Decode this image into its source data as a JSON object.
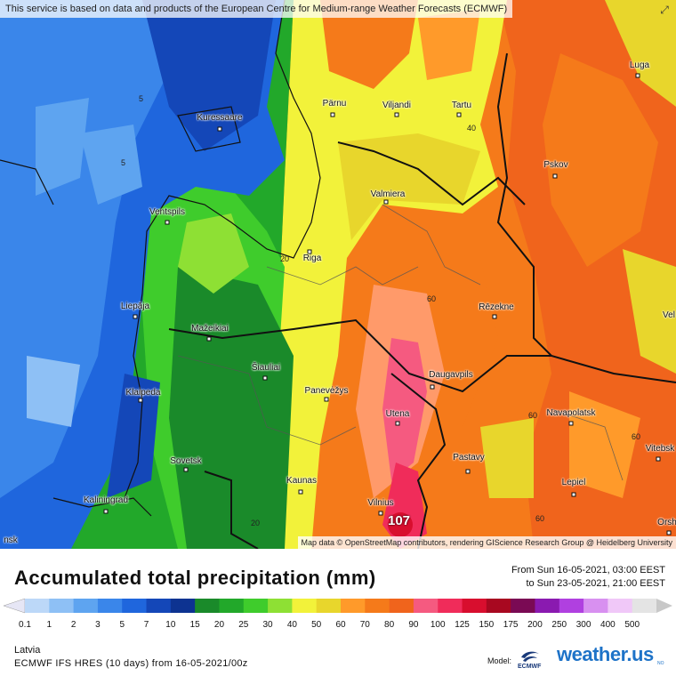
{
  "map": {
    "attribution_top": "This service is based on data and products of the European Centre for Medium-range Weather Forecasts (ECMWF)",
    "attribution_bottom": "Map data © OpenStreetMap contributors, rendering GIScience Research Group @ Heidelberg University",
    "expand_icon": "expand-arrows-icon",
    "cities": [
      {
        "name": "Pärnu"
      },
      {
        "name": "Viljandi"
      },
      {
        "name": "Tartu"
      },
      {
        "name": "Luga"
      },
      {
        "name": "Kuressaare"
      },
      {
        "name": "Pskov"
      },
      {
        "name": "Valmiera"
      },
      {
        "name": "Ventspils"
      },
      {
        "name": "Riga"
      },
      {
        "name": "Liepāja"
      },
      {
        "name": "Rēzekne"
      },
      {
        "name": "Mažeikiai"
      },
      {
        "name": "Šiauliai"
      },
      {
        "name": "Daugavpils"
      },
      {
        "name": "Klaipeda"
      },
      {
        "name": "Panevėžys"
      },
      {
        "name": "Utena"
      },
      {
        "name": "Navapolatsk"
      },
      {
        "name": "Vitebsk"
      },
      {
        "name": "Sovetsk"
      },
      {
        "name": "Pastavy"
      },
      {
        "name": "Kaunas"
      },
      {
        "name": "Lepiel"
      },
      {
        "name": "Kaliningrad"
      },
      {
        "name": "Vilnius"
      },
      {
        "name": "Orsh"
      },
      {
        "name": "Vel"
      },
      {
        "name": "nsk"
      }
    ],
    "contour_labels": [
      "5",
      "5",
      "20",
      "40",
      "60",
      "60",
      "60",
      "60",
      "20"
    ],
    "max_value": "107"
  },
  "legend": {
    "title": "Accumulated total precipitation (mm)",
    "period_from": "From Sun 16-05-2021, 03:00 EEST",
    "period_to": "to Sun 23-05-2021, 21:00 EEST",
    "ticks": [
      "0.1",
      "1",
      "2",
      "3",
      "5",
      "7",
      "10",
      "15",
      "20",
      "25",
      "30",
      "40",
      "50",
      "60",
      "70",
      "80",
      "90",
      "100",
      "125",
      "150",
      "175",
      "200",
      "250",
      "300",
      "400",
      "500"
    ],
    "colors": [
      "#e6e6f5",
      "#bcd8f8",
      "#8ec0f5",
      "#5ea4f0",
      "#3a86ea",
      "#1f66dd",
      "#1447b8",
      "#0d3391",
      "#1a8a2a",
      "#22a82a",
      "#3fcc2c",
      "#8ee034",
      "#f2f23a",
      "#e8d62c",
      "#ff9a2a",
      "#f57a1a",
      "#f0641c",
      "#f55a80",
      "#f02c5a",
      "#d80e2e",
      "#a80820",
      "#7a0a54",
      "#8a1ab0",
      "#b040e0",
      "#d890f0",
      "#f0c8f8",
      "#e4e4e4",
      "#c8c8c8"
    ],
    "region": "Latvia",
    "model_run": "ECMWF IFS HRES (10 days) from 16-05-2021/00z",
    "model_label": "Model:",
    "model_logo_text": "ECMWF",
    "brand": "weather.us",
    "brand_sup": "NO"
  }
}
